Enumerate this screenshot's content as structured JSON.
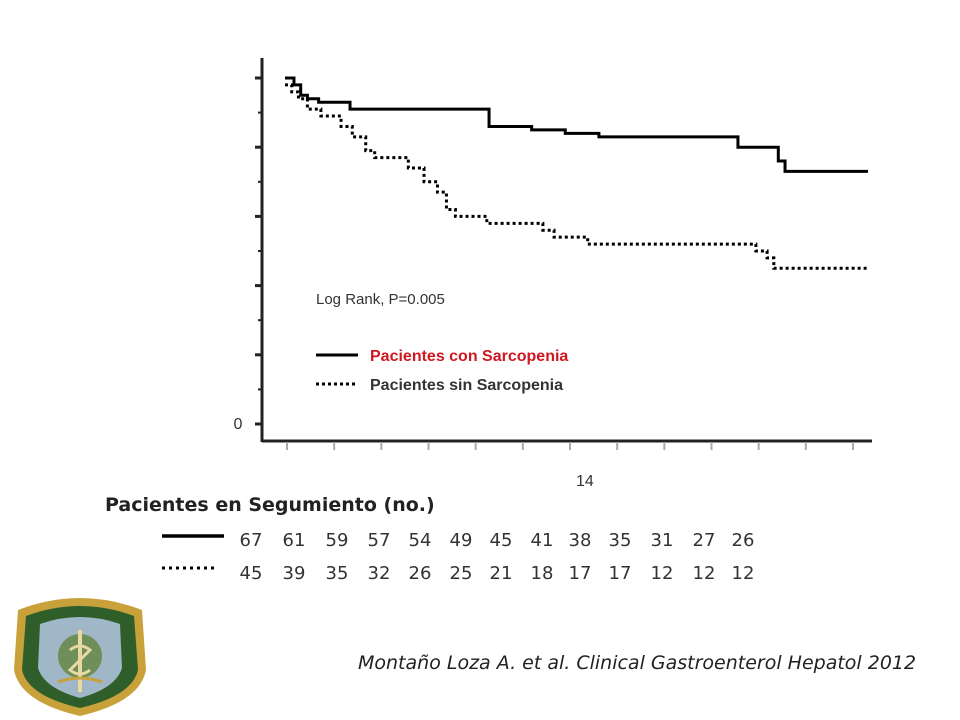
{
  "chart_data": {
    "type": "line",
    "title": "",
    "xlabel": "",
    "ylabel": "",
    "x_tick_labels": [
      {
        "x": 14,
        "label": "14"
      }
    ],
    "y_tick_labels": [
      {
        "y": 0,
        "label": "0"
      }
    ],
    "xlim": [
      0,
      26
    ],
    "ylim": [
      0,
      1
    ],
    "annotation": "Log Rank, P=0.005",
    "legend_placement": "center",
    "series": [
      {
        "name": "Pacientes con Sarcopenia",
        "style": "solid",
        "color": "#000000",
        "points": [
          [
            0,
            1.0
          ],
          [
            0.4,
            0.98
          ],
          [
            0.7,
            0.95
          ],
          [
            1.0,
            0.94
          ],
          [
            1.5,
            0.93
          ],
          [
            2.9,
            0.91
          ],
          [
            9.1,
            0.86
          ],
          [
            11.0,
            0.85
          ],
          [
            12.5,
            0.84
          ],
          [
            14.0,
            0.83
          ],
          [
            20.2,
            0.8
          ],
          [
            22.0,
            0.76
          ],
          [
            22.3,
            0.73
          ],
          [
            26,
            0.73
          ]
        ]
      },
      {
        "name": "Pacientes sin Sarcopenia",
        "style": "dotted",
        "color": "#000000",
        "points": [
          [
            0,
            0.98
          ],
          [
            0.3,
            0.96
          ],
          [
            0.6,
            0.94
          ],
          [
            1.0,
            0.91
          ],
          [
            1.6,
            0.89
          ],
          [
            2.5,
            0.86
          ],
          [
            3.0,
            0.83
          ],
          [
            3.6,
            0.79
          ],
          [
            4.0,
            0.77
          ],
          [
            5.5,
            0.74
          ],
          [
            6.2,
            0.7
          ],
          [
            6.8,
            0.67
          ],
          [
            7.2,
            0.62
          ],
          [
            7.6,
            0.6
          ],
          [
            9.0,
            0.58
          ],
          [
            11.5,
            0.56
          ],
          [
            12.0,
            0.54
          ],
          [
            13.5,
            0.52
          ],
          [
            21.0,
            0.5
          ],
          [
            21.5,
            0.48
          ],
          [
            21.8,
            0.45
          ],
          [
            26,
            0.45
          ]
        ]
      }
    ]
  },
  "risk_table": {
    "title": "Pacientes en Segumiento (no.)",
    "sarcopenia": [
      "67",
      "61",
      "59",
      "57",
      "54",
      "49",
      "45",
      "41",
      "38",
      "35",
      "31",
      "27",
      "26"
    ],
    "no_sarcopenia": [
      "45",
      "39",
      "35",
      "32",
      "26",
      "25",
      "21",
      "18",
      "17",
      "17",
      "12",
      "12",
      "12"
    ]
  },
  "citation": "Montaño Loza A. et al. Clinical Gastroenterol Hepatol 2012",
  "colors": {
    "legend_red": "#d0171f",
    "legend_dark": "#333333",
    "axis": "#222222",
    "seal_green": "#3c6b2a",
    "seal_gold": "#c9a13b"
  }
}
